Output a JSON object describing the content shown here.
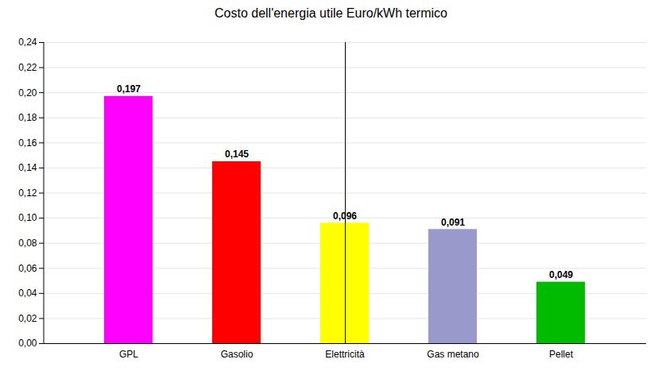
{
  "chart_data": {
    "type": "bar",
    "title": "Costo dell'energia utile Euro/kWh termico",
    "categories": [
      "GPL",
      "Gasolio",
      "Elettricità",
      "Gas metano",
      "Pellet"
    ],
    "values": [
      0.197,
      0.145,
      0.096,
      0.091,
      0.049
    ],
    "value_labels": [
      "0,197",
      "0,145",
      "0,096",
      "0,091",
      "0,049"
    ],
    "colors": [
      "#FF00FF",
      "#FF0000",
      "#FFFF00",
      "#9999CC",
      "#00BB00"
    ],
    "data_labels": true,
    "ylim": [
      0,
      0.24
    ],
    "yticks": [
      {
        "value": 0.0,
        "label": "0,00"
      },
      {
        "value": 0.02,
        "label": "0,02"
      },
      {
        "value": 0.04,
        "label": "0,04"
      },
      {
        "value": 0.06,
        "label": "0,06"
      },
      {
        "value": 0.08,
        "label": "0,08"
      },
      {
        "value": 0.1,
        "label": "0,10"
      },
      {
        "value": 0.12,
        "label": "0,12"
      },
      {
        "value": 0.14,
        "label": "0,14"
      },
      {
        "value": 0.16,
        "label": "0,16"
      },
      {
        "value": 0.18,
        "label": "0,18"
      },
      {
        "value": 0.2,
        "label": "0,20"
      },
      {
        "value": 0.22,
        "label": "0,22"
      },
      {
        "value": 0.24,
        "label": "0,24"
      }
    ],
    "grid": true
  }
}
